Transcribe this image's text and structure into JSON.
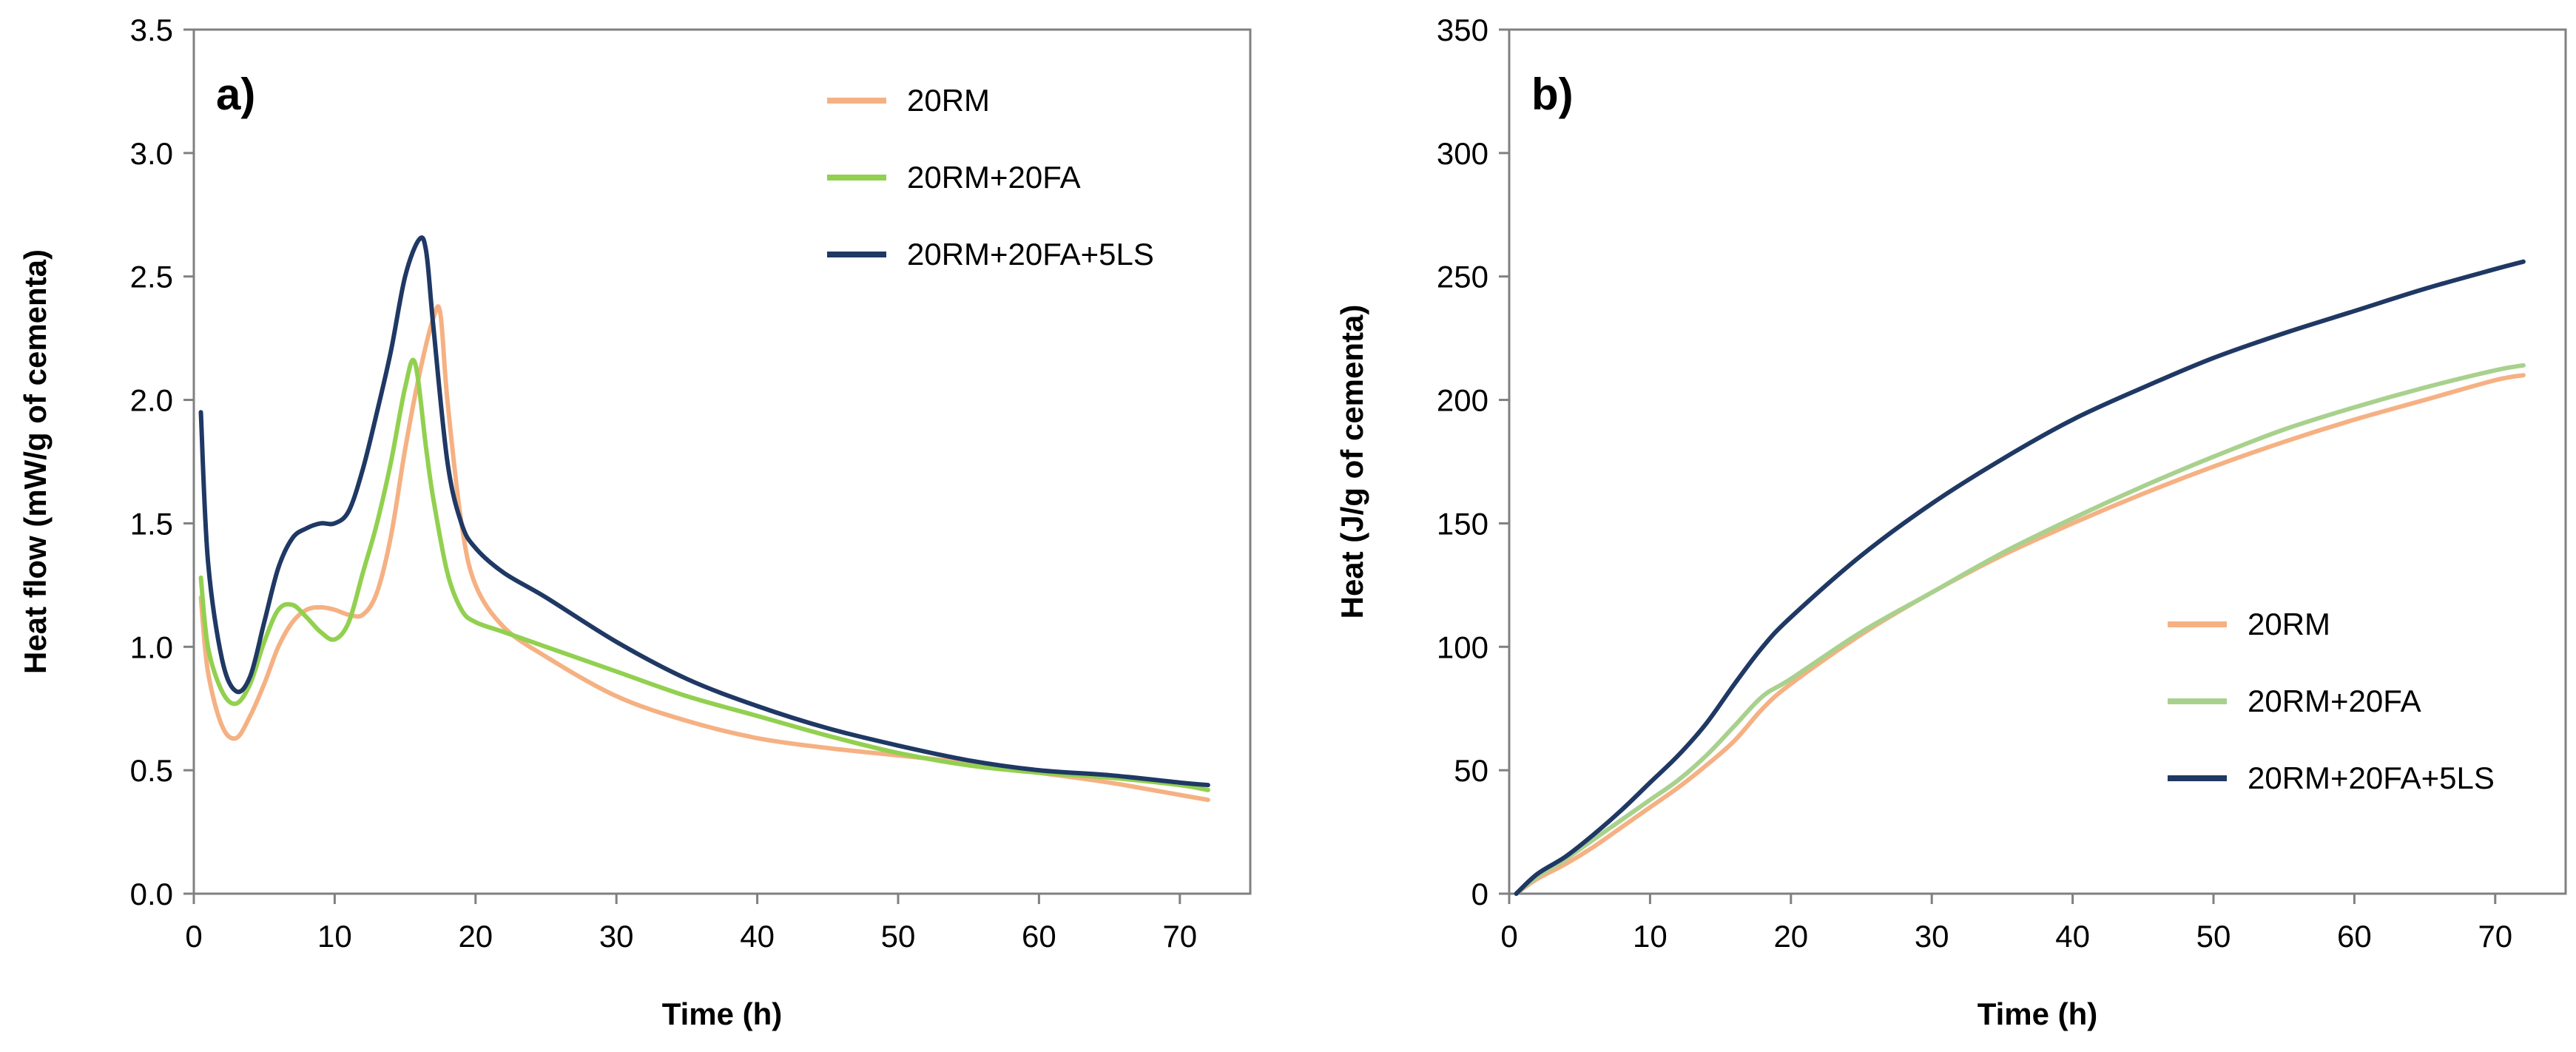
{
  "chart_data": [
    {
      "type": "line",
      "panel_label": "a)",
      "title": "",
      "xlabel": "Time (h)",
      "ylabel": "Heat flow (mW/g of cementa)",
      "xlim": [
        0,
        75
      ],
      "ylim": [
        0,
        3.5
      ],
      "xticks": [
        0,
        10,
        20,
        30,
        40,
        50,
        60,
        70
      ],
      "yticks": [
        0.0,
        0.5,
        1.0,
        1.5,
        2.0,
        2.5,
        3.0,
        3.5
      ],
      "ytick_labels": [
        "0.0",
        "0.5",
        "1.0",
        "1.5",
        "2.0",
        "2.5",
        "3.0",
        "3.5"
      ],
      "legend_position": "top-right",
      "series": [
        {
          "name": "20RM",
          "color": "#f5b183",
          "x": [
            0.5,
            1,
            2,
            3,
            4,
            5,
            6,
            7,
            8,
            9,
            10,
            11,
            12,
            13,
            14,
            15,
            16,
            17,
            17.5,
            18,
            19,
            20,
            22,
            25,
            30,
            35,
            40,
            45,
            50,
            55,
            60,
            65,
            70,
            72
          ],
          "y": [
            1.2,
            0.9,
            0.68,
            0.63,
            0.72,
            0.85,
            1.0,
            1.1,
            1.15,
            1.16,
            1.15,
            1.13,
            1.13,
            1.22,
            1.45,
            1.8,
            2.1,
            2.33,
            2.35,
            2.0,
            1.5,
            1.25,
            1.08,
            0.96,
            0.8,
            0.7,
            0.63,
            0.59,
            0.56,
            0.53,
            0.49,
            0.45,
            0.4,
            0.38
          ]
        },
        {
          "name": "20RM+20FA",
          "color": "#92d050",
          "x": [
            0.5,
            1,
            2,
            3,
            4,
            5,
            6,
            7,
            8,
            9,
            10,
            11,
            12,
            13,
            14,
            15,
            15.7,
            16.5,
            17,
            18,
            19,
            20,
            22,
            25,
            30,
            35,
            40,
            45,
            50,
            55,
            60,
            65,
            70,
            72
          ],
          "y": [
            1.28,
            1.0,
            0.82,
            0.77,
            0.85,
            1.02,
            1.15,
            1.17,
            1.12,
            1.06,
            1.03,
            1.1,
            1.3,
            1.5,
            1.75,
            2.05,
            2.15,
            1.8,
            1.6,
            1.3,
            1.15,
            1.1,
            1.06,
            1.0,
            0.9,
            0.8,
            0.72,
            0.64,
            0.57,
            0.52,
            0.49,
            0.47,
            0.44,
            0.42
          ]
        },
        {
          "name": "20RM+20FA+5LS",
          "color": "#1f3864",
          "x": [
            0.5,
            1,
            2,
            3,
            4,
            5,
            6,
            7,
            8,
            9,
            10,
            11,
            12,
            13,
            14,
            15,
            16,
            16.5,
            17,
            18,
            19,
            20,
            22,
            25,
            30,
            35,
            40,
            45,
            50,
            55,
            60,
            65,
            70,
            72
          ],
          "y": [
            1.95,
            1.35,
            0.95,
            0.82,
            0.88,
            1.1,
            1.32,
            1.44,
            1.48,
            1.5,
            1.5,
            1.55,
            1.72,
            1.95,
            2.2,
            2.5,
            2.65,
            2.6,
            2.3,
            1.75,
            1.5,
            1.4,
            1.3,
            1.2,
            1.02,
            0.87,
            0.76,
            0.67,
            0.6,
            0.54,
            0.5,
            0.48,
            0.45,
            0.44
          ]
        }
      ]
    },
    {
      "type": "line",
      "panel_label": "b)",
      "title": "",
      "xlabel": "Time (h)",
      "ylabel": "Heat (J/g of cementa)",
      "xlim": [
        0,
        75
      ],
      "ylim": [
        0,
        350
      ],
      "xticks": [
        0,
        10,
        20,
        30,
        40,
        50,
        60,
        70
      ],
      "yticks": [
        0,
        50,
        100,
        150,
        200,
        250,
        300,
        350
      ],
      "ytick_labels": [
        "0",
        "50",
        "100",
        "150",
        "200",
        "250",
        "300",
        "350"
      ],
      "legend_position": "center-right",
      "series": [
        {
          "name": "20RM",
          "color": "#f5b183",
          "x": [
            0.5,
            2,
            4,
            6,
            8,
            10,
            12,
            14,
            16,
            18,
            20,
            25,
            30,
            35,
            40,
            45,
            50,
            55,
            60,
            65,
            70,
            72
          ],
          "y": [
            0,
            6,
            12,
            19,
            27,
            35,
            43,
            52,
            62,
            75,
            85,
            105,
            122,
            137,
            150,
            162,
            173,
            183,
            192,
            200,
            208,
            210
          ]
        },
        {
          "name": "20RM+20FA",
          "color": "#a9d18e",
          "x": [
            0.5,
            2,
            4,
            6,
            8,
            10,
            12,
            14,
            16,
            18,
            20,
            25,
            30,
            35,
            40,
            45,
            50,
            55,
            60,
            65,
            70,
            72
          ],
          "y": [
            0,
            7,
            14,
            22,
            30,
            38,
            46,
            56,
            68,
            80,
            87,
            106,
            122,
            138,
            152,
            165,
            177,
            188,
            197,
            205,
            212,
            214
          ]
        },
        {
          "name": "20RM+20FA+5LS",
          "color": "#1f3864",
          "x": [
            0.5,
            2,
            4,
            6,
            8,
            10,
            12,
            14,
            16,
            18,
            20,
            25,
            30,
            35,
            40,
            45,
            50,
            55,
            60,
            65,
            70,
            72
          ],
          "y": [
            0,
            8,
            15,
            24,
            34,
            45,
            56,
            69,
            85,
            100,
            112,
            137,
            158,
            176,
            192,
            205,
            217,
            227,
            236,
            245,
            253,
            256
          ]
        }
      ]
    }
  ]
}
